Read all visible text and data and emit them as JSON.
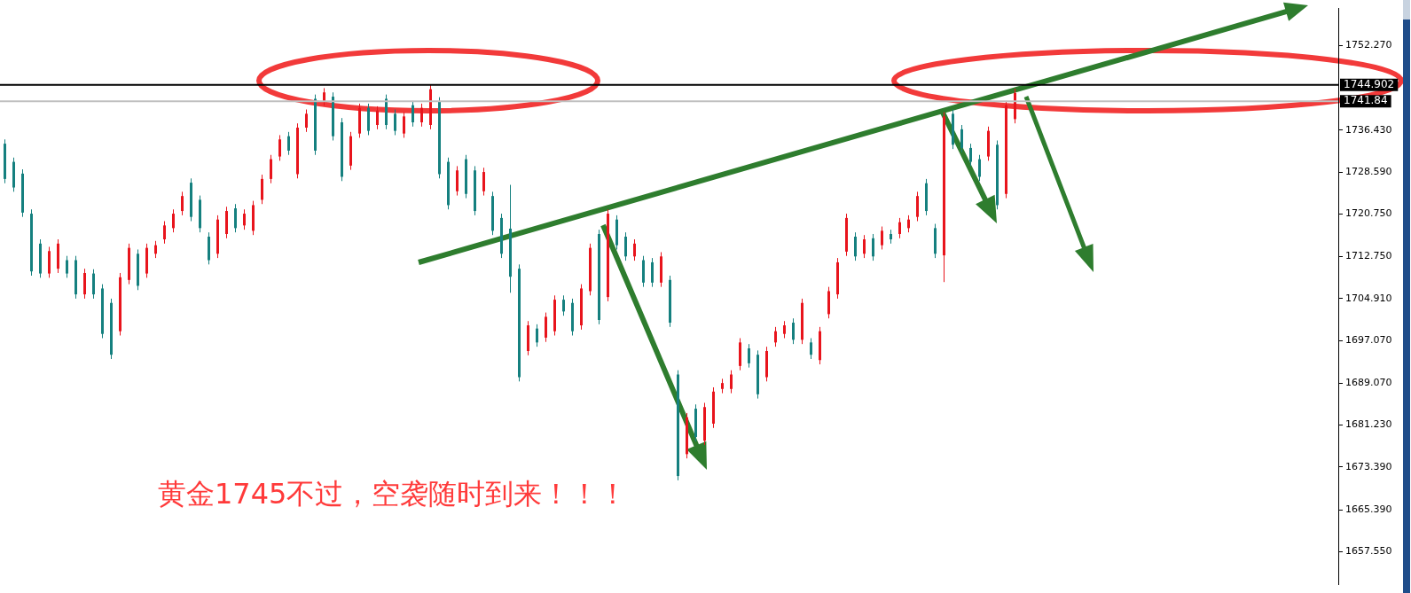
{
  "chart_data": {
    "type": "candlestick",
    "categories": [
      null,
      null,
      null,
      null,
      null,
      null,
      null,
      null,
      null,
      null,
      null,
      null,
      null,
      null,
      null,
      null,
      null,
      null,
      null,
      null,
      null,
      null,
      null,
      null,
      null,
      null,
      null,
      null,
      null,
      null,
      null,
      null,
      null,
      null,
      null,
      null,
      null,
      null,
      null,
      null,
      null,
      null,
      null,
      null,
      null,
      null,
      null,
      null,
      null,
      null,
      null,
      null,
      null,
      null,
      null,
      null,
      null,
      null,
      null,
      null,
      null,
      null,
      null,
      null,
      null,
      null,
      null,
      null,
      null,
      null,
      null,
      null,
      null,
      null,
      null,
      null,
      null,
      null,
      null,
      null,
      null,
      null,
      null,
      null,
      null,
      null,
      null,
      null,
      null,
      null,
      null,
      null,
      null,
      null,
      null,
      null,
      null,
      null,
      null,
      null,
      null,
      null,
      null,
      null,
      null,
      null,
      null,
      null,
      null,
      null,
      null,
      null,
      null,
      null,
      null,
      null,
      null,
      null,
      null,
      null,
      null,
      null,
      null,
      null,
      null,
      null,
      null,
      null,
      null,
      null,
      null,
      null,
      null,
      null,
      null,
      null,
      null,
      null,
      null,
      null,
      null,
      null,
      null,
      null,
      null,
      null,
      null,
      null,
      null,
      null,
      null
    ],
    "ohlc": [
      [
        1733.9,
        1734.7,
        1726.5,
        1727.3
      ],
      [
        1730.5,
        1731.3,
        1724.9,
        1725.7
      ],
      [
        1728.3,
        1729.1,
        1720.2,
        1721.0
      ],
      [
        1720.8,
        1721.6,
        1709.2,
        1710.0
      ],
      [
        1715.2,
        1716.0,
        1708.8,
        1709.6
      ],
      [
        1709.6,
        1714.6,
        1708.8,
        1713.8
      ],
      [
        1710.5,
        1716.0,
        1709.7,
        1715.2
      ],
      [
        1712.1,
        1712.9,
        1708.8,
        1709.6
      ],
      [
        1712.1,
        1712.9,
        1704.9,
        1705.7
      ],
      [
        1705.7,
        1710.5,
        1704.9,
        1709.7
      ],
      [
        1709.6,
        1710.4,
        1704.9,
        1705.7
      ],
      [
        1706.8,
        1707.6,
        1697.5,
        1698.3
      ],
      [
        1704.1,
        1704.9,
        1693.6,
        1694.4
      ],
      [
        1698.8,
        1709.7,
        1698.0,
        1708.9
      ],
      [
        1708.4,
        1715.2,
        1707.6,
        1714.4
      ],
      [
        1713.3,
        1714.1,
        1706.5,
        1707.3
      ],
      [
        1709.6,
        1715.2,
        1708.8,
        1714.4
      ],
      [
        1713.3,
        1715.7,
        1712.5,
        1714.9
      ],
      [
        1716.0,
        1719.4,
        1715.2,
        1718.6
      ],
      [
        1718.1,
        1721.6,
        1717.3,
        1720.8
      ],
      [
        1721.3,
        1724.9,
        1720.5,
        1724.1
      ],
      [
        1726.6,
        1727.4,
        1719.4,
        1720.2
      ],
      [
        1723.4,
        1724.2,
        1717.3,
        1718.1
      ],
      [
        1716.5,
        1717.3,
        1711.3,
        1712.1
      ],
      [
        1713.3,
        1720.5,
        1712.5,
        1719.7
      ],
      [
        1717.0,
        1722.1,
        1716.2,
        1721.3
      ],
      [
        1721.8,
        1722.6,
        1717.3,
        1718.1
      ],
      [
        1718.6,
        1721.6,
        1717.8,
        1720.8
      ],
      [
        1717.6,
        1723.2,
        1716.8,
        1722.4
      ],
      [
        1723.4,
        1728.1,
        1722.6,
        1727.3
      ],
      [
        1727.3,
        1731.8,
        1726.5,
        1731.0
      ],
      [
        1731.5,
        1735.5,
        1730.7,
        1734.7
      ],
      [
        1735.3,
        1736.1,
        1731.8,
        1732.6
      ],
      [
        1728.2,
        1737.7,
        1727.4,
        1736.9
      ],
      [
        1736.9,
        1740.3,
        1736.1,
        1739.5
      ],
      [
        1742.3,
        1743.1,
        1731.8,
        1732.6
      ],
      [
        1741.8,
        1744.3,
        1741.0,
        1743.5
      ],
      [
        1742.7,
        1743.5,
        1734.5,
        1735.3
      ],
      [
        1737.9,
        1738.7,
        1726.9,
        1727.7
      ],
      [
        1729.8,
        1736.1,
        1729.0,
        1735.3
      ],
      [
        1735.8,
        1741.4,
        1735.0,
        1740.6
      ],
      [
        1740.6,
        1741.4,
        1735.5,
        1736.3
      ],
      [
        1737.4,
        1740.9,
        1736.6,
        1740.1
      ],
      [
        1742.3,
        1743.1,
        1736.6,
        1737.4
      ],
      [
        1739.5,
        1740.3,
        1735.5,
        1736.3
      ],
      [
        1735.8,
        1739.8,
        1735.0,
        1739.0
      ],
      [
        1741.1,
        1741.9,
        1737.1,
        1737.9
      ],
      [
        1737.9,
        1741.4,
        1737.1,
        1740.6
      ],
      [
        1737.4,
        1744.9,
        1736.6,
        1744.1
      ],
      [
        1741.8,
        1742.6,
        1727.4,
        1728.2
      ],
      [
        1730.5,
        1731.3,
        1721.6,
        1722.4
      ],
      [
        1725.0,
        1729.7,
        1724.2,
        1728.9
      ],
      [
        1731.0,
        1731.8,
        1723.7,
        1724.5
      ],
      [
        1728.9,
        1729.7,
        1720.5,
        1721.3
      ],
      [
        1725.0,
        1729.4,
        1724.2,
        1728.6
      ],
      [
        1724.1,
        1724.9,
        1716.8,
        1717.6
      ],
      [
        1720.0,
        1720.8,
        1712.5,
        1713.3
      ],
      [
        1718.0,
        1726.2,
        1706.0,
        1709.0
      ],
      [
        1710.5,
        1711.3,
        1689.4,
        1690.2
      ],
      [
        1695.1,
        1700.7,
        1694.3,
        1699.9
      ],
      [
        1699.3,
        1700.1,
        1695.9,
        1696.7
      ],
      [
        1697.6,
        1702.3,
        1696.8,
        1701.5
      ],
      [
        1698.8,
        1705.5,
        1698.0,
        1704.7
      ],
      [
        1704.7,
        1705.5,
        1701.7,
        1702.5
      ],
      [
        1704.1,
        1704.9,
        1698.0,
        1698.8
      ],
      [
        1699.9,
        1707.6,
        1699.1,
        1706.8
      ],
      [
        1706.3,
        1715.2,
        1705.5,
        1714.4
      ],
      [
        1717.0,
        1717.8,
        1700.1,
        1700.9
      ],
      [
        1705.2,
        1721.6,
        1704.4,
        1720.8
      ],
      [
        1719.7,
        1720.5,
        1714.1,
        1714.9
      ],
      [
        1716.5,
        1717.3,
        1712.0,
        1712.8
      ],
      [
        1712.8,
        1716.0,
        1712.0,
        1715.2
      ],
      [
        1712.1,
        1712.9,
        1707.1,
        1707.9
      ],
      [
        1711.7,
        1712.5,
        1707.1,
        1707.9
      ],
      [
        1707.9,
        1713.6,
        1707.1,
        1712.8
      ],
      [
        1708.4,
        1709.2,
        1699.6,
        1700.4
      ],
      [
        1690.7,
        1691.5,
        1670.9,
        1671.7
      ],
      [
        1675.8,
        1683.5,
        1675.0,
        1682.7
      ],
      [
        1684.3,
        1685.1,
        1678.2,
        1679.0
      ],
      [
        1678.3,
        1685.4,
        1677.5,
        1684.6
      ],
      [
        1681.5,
        1688.3,
        1680.7,
        1687.5
      ],
      [
        1688.0,
        1689.9,
        1687.2,
        1689.1
      ],
      [
        1688.0,
        1691.5,
        1687.2,
        1690.7
      ],
      [
        1692.3,
        1697.5,
        1691.5,
        1696.7
      ],
      [
        1695.6,
        1696.4,
        1692.0,
        1692.8
      ],
      [
        1694.4,
        1695.2,
        1686.2,
        1687.0
      ],
      [
        1690.2,
        1695.9,
        1689.4,
        1695.1
      ],
      [
        1696.7,
        1699.6,
        1695.9,
        1698.8
      ],
      [
        1698.3,
        1700.7,
        1697.5,
        1699.9
      ],
      [
        1700.4,
        1701.2,
        1696.4,
        1697.2
      ],
      [
        1697.2,
        1704.9,
        1696.4,
        1704.1
      ],
      [
        1696.7,
        1697.5,
        1693.6,
        1694.4
      ],
      [
        1693.4,
        1699.6,
        1692.6,
        1698.8
      ],
      [
        1702.0,
        1707.1,
        1701.2,
        1706.3
      ],
      [
        1705.7,
        1712.5,
        1704.9,
        1711.7
      ],
      [
        1713.7,
        1720.8,
        1712.9,
        1720.0
      ],
      [
        1716.5,
        1717.3,
        1712.0,
        1712.8
      ],
      [
        1713.3,
        1716.8,
        1712.5,
        1716.0
      ],
      [
        1716.2,
        1717.0,
        1712.0,
        1712.8
      ],
      [
        1714.9,
        1718.4,
        1714.1,
        1717.6
      ],
      [
        1717.0,
        1717.8,
        1715.2,
        1716.0
      ],
      [
        1717.0,
        1720.0,
        1716.2,
        1719.2
      ],
      [
        1718.1,
        1720.5,
        1717.3,
        1719.7
      ],
      [
        1720.2,
        1724.9,
        1719.4,
        1724.1
      ],
      [
        1726.5,
        1727.3,
        1720.5,
        1721.3
      ],
      [
        1718.1,
        1718.9,
        1712.5,
        1713.3
      ],
      [
        1713.0,
        1739.8,
        1708.0,
        1739.0
      ],
      [
        1739.5,
        1740.3,
        1732.9,
        1733.7
      ],
      [
        1736.6,
        1737.4,
        1732.3,
        1733.1
      ],
      [
        1733.1,
        1733.9,
        1729.7,
        1730.5
      ],
      [
        1731.0,
        1731.8,
        1726.9,
        1727.7
      ],
      [
        1731.5,
        1737.1,
        1730.7,
        1736.3
      ],
      [
        1733.7,
        1734.5,
        1721.6,
        1722.4
      ],
      [
        1724.5,
        1741.9,
        1723.7,
        1741.1
      ],
      [
        1738.5,
        1744.2,
        1737.7,
        1743.4
      ],
      null,
      null,
      null,
      null,
      null,
      null,
      null,
      null,
      null,
      null,
      null,
      null,
      null,
      null,
      null,
      null,
      null,
      null,
      null,
      null,
      null,
      null,
      null,
      null,
      null,
      null,
      null,
      null,
      null,
      null,
      null,
      null,
      null,
      null,
      null,
      null
    ],
    "colors": [
      "#15807f",
      "#15807f",
      "#15807f",
      "#15807f",
      "#15807f",
      "#e8141c",
      "#e8141c",
      "#15807f",
      "#15807f",
      "#e8141c",
      "#15807f",
      "#15807f",
      "#15807f",
      "#e8141c",
      "#e8141c",
      "#15807f",
      "#e8141c",
      "#e8141c",
      "#e8141c",
      "#e8141c",
      "#e8141c",
      "#15807f",
      "#15807f",
      "#15807f",
      "#e8141c",
      "#e8141c",
      "#15807f",
      "#e8141c",
      "#e8141c",
      "#e8141c",
      "#e8141c",
      "#e8141c",
      "#15807f",
      "#e8141c",
      "#e8141c",
      "#15807f",
      "#e8141c",
      "#15807f",
      "#15807f",
      "#e8141c",
      "#e8141c",
      "#15807f",
      "#e8141c",
      "#15807f",
      "#15807f",
      "#e8141c",
      "#15807f",
      "#e8141c",
      "#e8141c",
      "#15807f",
      "#15807f",
      "#e8141c",
      "#15807f",
      "#15807f",
      "#e8141c",
      "#15807f",
      "#15807f",
      "#15807f",
      "#15807f",
      "#e8141c",
      "#15807f",
      "#e8141c",
      "#e8141c",
      "#15807f",
      "#15807f",
      "#e8141c",
      "#e8141c",
      "#15807f",
      "#e8141c",
      "#15807f",
      "#15807f",
      "#e8141c",
      "#15807f",
      "#15807f",
      "#e8141c",
      "#15807f",
      "#15807f",
      "#e8141c",
      "#15807f",
      "#e8141c",
      "#e8141c",
      "#e8141c",
      "#e8141c",
      "#e8141c",
      "#15807f",
      "#15807f",
      "#e8141c",
      "#e8141c",
      "#e8141c",
      "#15807f",
      "#e8141c",
      "#15807f",
      "#e8141c",
      "#e8141c",
      "#e8141c",
      "#e8141c",
      "#15807f",
      "#e8141c",
      "#15807f",
      "#e8141c",
      "#15807f",
      "#e8141c",
      "#e8141c",
      "#e8141c",
      "#15807f",
      "#15807f",
      "#e8141c",
      "#15807f",
      "#15807f",
      "#15807f",
      "#15807f",
      "#e8141c",
      "#15807f",
      "#e8141c",
      "#e8141c",
      null,
      null,
      null,
      null,
      null,
      null,
      null,
      null,
      null,
      null,
      null,
      null,
      null,
      null,
      null,
      null,
      null,
      null,
      null,
      null,
      null,
      null,
      null,
      null,
      null,
      null,
      null,
      null,
      null,
      null,
      null,
      null,
      null,
      null,
      null,
      null
    ],
    "ylim": [
      1651.4,
      1759.2
    ],
    "yticks": [
      {
        "value": 1752.27,
        "label": "1752.270"
      },
      {
        "value": 1736.43,
        "label": "1736.430"
      },
      {
        "value": 1728.59,
        "label": "1728.590"
      },
      {
        "value": 1720.75,
        "label": "1720.750"
      },
      {
        "value": 1712.75,
        "label": "1712.750"
      },
      {
        "value": 1704.91,
        "label": "1704.910"
      },
      {
        "value": 1697.07,
        "label": "1697.070"
      },
      {
        "value": 1689.07,
        "label": "1689.070"
      },
      {
        "value": 1681.23,
        "label": "1681.230"
      },
      {
        "value": 1673.39,
        "label": "1673.390"
      },
      {
        "value": 1665.39,
        "label": "1665.390"
      },
      {
        "value": 1657.55,
        "label": "1657.550"
      }
    ],
    "ref_lines": [
      {
        "axis": "y",
        "value": 1744.902,
        "label": "1744.902",
        "color": "#000000"
      },
      {
        "axis": "y",
        "value": 1741.84,
        "label": "1741.84",
        "color": "#c0c0c0"
      }
    ],
    "annotations": [
      "黄金1745不过，空袭随时到来！！！"
    ],
    "tick_labels": "y"
  }
}
